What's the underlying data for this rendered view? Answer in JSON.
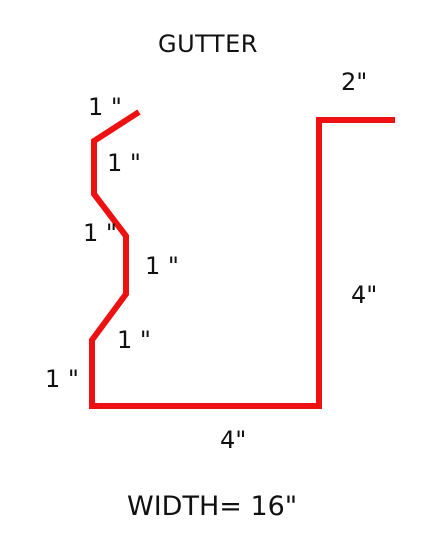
{
  "title": "GUTTER",
  "width_label": "WIDTH= 16\"",
  "stroke_color": "#ee1111",
  "dimensions": {
    "top_flange": "2\"",
    "back_height": "4\"",
    "bottom": "4\"",
    "front_lower": "1 \"",
    "front_diag_lower": "1 \"",
    "front_vertical_mid": "1 \"",
    "front_diag_upper": "1 \"",
    "front_vertical_upper": "1 \"",
    "front_lip": "1 \""
  }
}
